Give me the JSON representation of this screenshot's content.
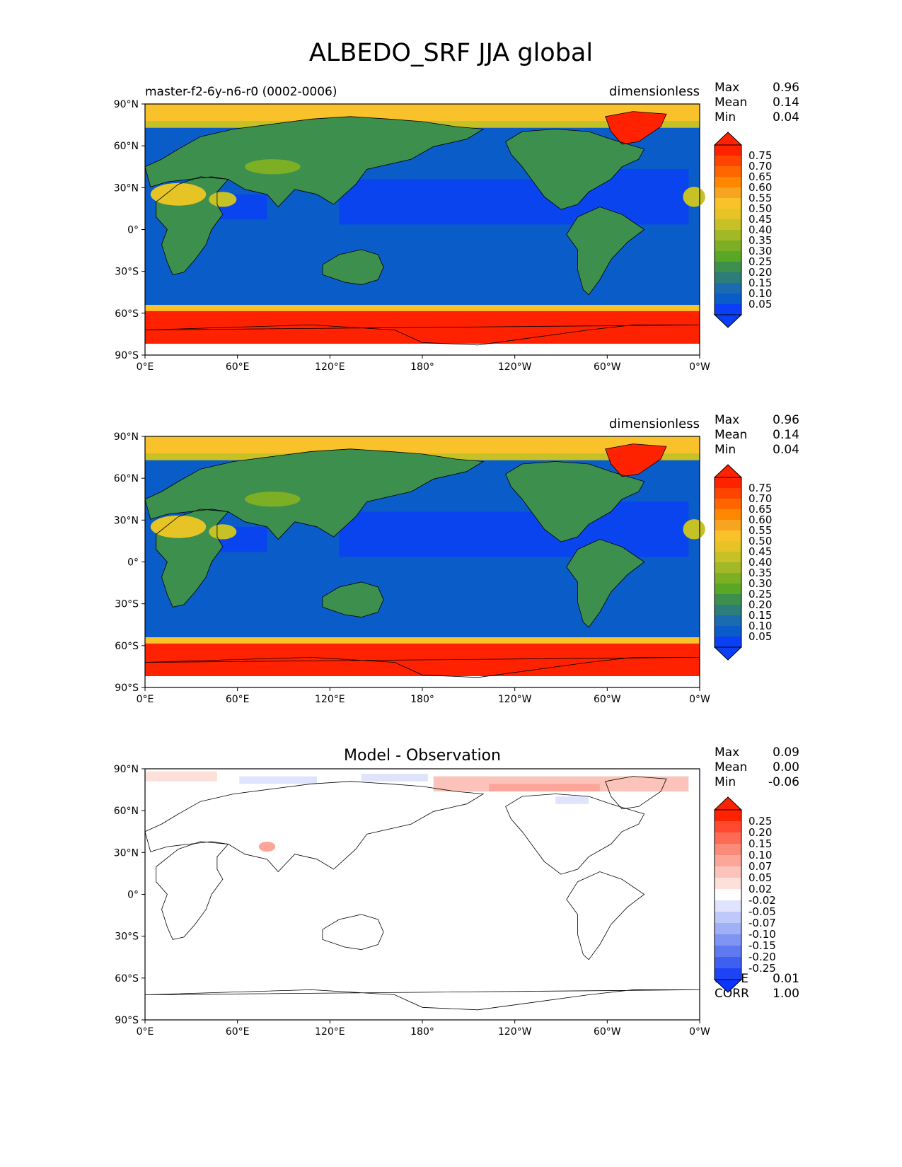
{
  "title": "ALBEDO_SRF JJA global",
  "panels": [
    {
      "id": "test",
      "left_title": "master-f2-6y-n6-r0 (0002-0006)",
      "center_title": "",
      "units": "dimensionless",
      "stats": [
        {
          "label": "Max",
          "value": "0.96"
        },
        {
          "label": "Mean",
          "value": "0.14"
        },
        {
          "label": "Min",
          "value": "0.04"
        }
      ],
      "extra_stats": [],
      "colorbar": {
        "labels": [
          "0.75",
          "0.70",
          "0.65",
          "0.60",
          "0.55",
          "0.50",
          "0.45",
          "0.40",
          "0.35",
          "0.30",
          "0.25",
          "0.20",
          "0.15",
          "0.10",
          "0.05"
        ],
        "colors": [
          "#ff2200",
          "#ff4400",
          "#ff6600",
          "#ff8800",
          "#f7a420",
          "#f9c22a",
          "#e6c425",
          "#c5c126",
          "#a2b826",
          "#7caf24",
          "#5aa725",
          "#3d8f4e",
          "#2d7d7b",
          "#1b6bb0",
          "#0a5cc8",
          "#0b3ff5"
        ],
        "min_extend_color": "#0b3ff5",
        "max_extend_color": "#ff2200"
      }
    },
    {
      "id": "ref",
      "left_title": "",
      "center_title": "",
      "units": "dimensionless",
      "stats": [
        {
          "label": "Max",
          "value": "0.96"
        },
        {
          "label": "Mean",
          "value": "0.14"
        },
        {
          "label": "Min",
          "value": "0.04"
        }
      ],
      "extra_stats": [],
      "colorbar": {
        "labels": [
          "0.75",
          "0.70",
          "0.65",
          "0.60",
          "0.55",
          "0.50",
          "0.45",
          "0.40",
          "0.35",
          "0.30",
          "0.25",
          "0.20",
          "0.15",
          "0.10",
          "0.05"
        ],
        "colors": [
          "#ff2200",
          "#ff4400",
          "#ff6600",
          "#ff8800",
          "#f7a420",
          "#f9c22a",
          "#e6c425",
          "#c5c126",
          "#a2b826",
          "#7caf24",
          "#5aa725",
          "#3d8f4e",
          "#2d7d7b",
          "#1b6bb0",
          "#0a5cc8",
          "#0b3ff5"
        ],
        "min_extend_color": "#0b3ff5",
        "max_extend_color": "#ff2200"
      }
    },
    {
      "id": "diff",
      "left_title": "",
      "center_title": "Model - Observation",
      "units": "",
      "stats": [
        {
          "label": "Max",
          "value": "0.09"
        },
        {
          "label": "Mean",
          "value": "0.00"
        },
        {
          "label": "Min",
          "value": "-0.06"
        }
      ],
      "extra_stats": [
        {
          "label": "RMSE",
          "value": "0.01"
        },
        {
          "label": "CORR",
          "value": "1.00"
        }
      ],
      "colorbar": {
        "labels": [
          "0.25",
          "0.20",
          "0.15",
          "0.10",
          "0.07",
          "0.05",
          "0.02",
          "-0.02",
          "-0.05",
          "-0.07",
          "-0.10",
          "-0.15",
          "-0.20",
          "-0.25"
        ],
        "colors": [
          "#ff2200",
          "#ff4a30",
          "#fd6a55",
          "#fc8a78",
          "#fba699",
          "#fcc3ba",
          "#fde0da",
          "#ffffff",
          "#dfe4fc",
          "#bfc9f9",
          "#9fb0f6",
          "#7f95f3",
          "#5f7af0",
          "#3f5ff0",
          "#1f44f5"
        ],
        "min_extend_color": "#0b35ff",
        "max_extend_color": "#ff2200"
      }
    }
  ],
  "axes": {
    "x_ticks": [
      "0°E",
      "60°E",
      "120°E",
      "180°",
      "120°W",
      "60°W",
      "0°W"
    ],
    "y_ticks": [
      "90°N",
      "60°N",
      "30°N",
      "0°",
      "30°S",
      "60°S",
      "90°S"
    ]
  }
}
